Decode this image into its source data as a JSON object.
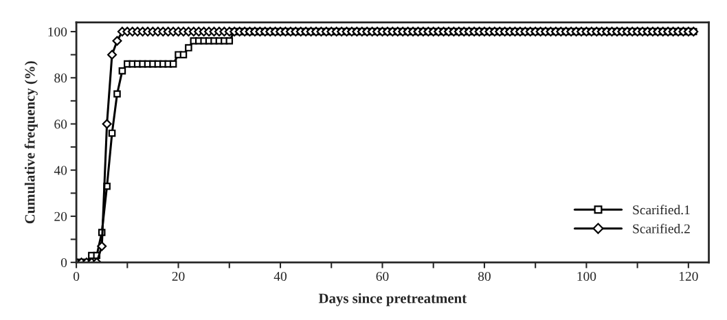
{
  "chart_data": {
    "type": "line",
    "xlabel": "Days since pretreatment",
    "ylabel": "Cumulative frequency (%)",
    "x": [
      0,
      1,
      2,
      3,
      4,
      5,
      6,
      7,
      8,
      9,
      10,
      11,
      12,
      13,
      14,
      15,
      16,
      17,
      18,
      19,
      20,
      21,
      22,
      23,
      24,
      25,
      26,
      27,
      28,
      29,
      30,
      31,
      32,
      33,
      34,
      35,
      36,
      37,
      38,
      39,
      40,
      41,
      42,
      43,
      44,
      45,
      46,
      47,
      48,
      49,
      50,
      51,
      52,
      53,
      54,
      55,
      56,
      57,
      58,
      59,
      60,
      61,
      62,
      63,
      64,
      65,
      66,
      67,
      68,
      69,
      70,
      71,
      72,
      73,
      74,
      75,
      76,
      77,
      78,
      79,
      80,
      81,
      82,
      83,
      84,
      85,
      86,
      87,
      88,
      89,
      90,
      91,
      92,
      93,
      94,
      95,
      96,
      97,
      98,
      99,
      100,
      101,
      102,
      103,
      104,
      105,
      106,
      107,
      108,
      109,
      110,
      111,
      112,
      113,
      114,
      115,
      116,
      117,
      118,
      119,
      120,
      121
    ],
    "series": [
      {
        "name": "Scarified.1",
        "color": "#000000",
        "marker": "square",
        "values": [
          0,
          0,
          0,
          3,
          3,
          13,
          33,
          56,
          73,
          83,
          86,
          86,
          86,
          86,
          86,
          86,
          86,
          86,
          86,
          86,
          90,
          90,
          93,
          96,
          96,
          96,
          96,
          96,
          96,
          96,
          96,
          100,
          100,
          100,
          100,
          100,
          100,
          100,
          100,
          100,
          100,
          100,
          100,
          100,
          100,
          100,
          100,
          100,
          100,
          100,
          100,
          100,
          100,
          100,
          100,
          100,
          100,
          100,
          100,
          100,
          100,
          100,
          100,
          100,
          100,
          100,
          100,
          100,
          100,
          100,
          100,
          100,
          100,
          100,
          100,
          100,
          100,
          100,
          100,
          100,
          100,
          100,
          100,
          100,
          100,
          100,
          100,
          100,
          100,
          100,
          100,
          100,
          100,
          100,
          100,
          100,
          100,
          100,
          100,
          100,
          100,
          100,
          100,
          100,
          100,
          100,
          100,
          100,
          100,
          100,
          100,
          100,
          100,
          100,
          100,
          100,
          100,
          100,
          100,
          100,
          100,
          100
        ]
      },
      {
        "name": "Scarified.2",
        "color": "#000000",
        "marker": "diamond",
        "values": [
          0,
          0,
          0,
          0,
          0,
          7,
          60,
          90,
          96,
          100,
          100,
          100,
          100,
          100,
          100,
          100,
          100,
          100,
          100,
          100,
          100,
          100,
          100,
          100,
          100,
          100,
          100,
          100,
          100,
          100,
          100,
          100,
          100,
          100,
          100,
          100,
          100,
          100,
          100,
          100,
          100,
          100,
          100,
          100,
          100,
          100,
          100,
          100,
          100,
          100,
          100,
          100,
          100,
          100,
          100,
          100,
          100,
          100,
          100,
          100,
          100,
          100,
          100,
          100,
          100,
          100,
          100,
          100,
          100,
          100,
          100,
          100,
          100,
          100,
          100,
          100,
          100,
          100,
          100,
          100,
          100,
          100,
          100,
          100,
          100,
          100,
          100,
          100,
          100,
          100,
          100,
          100,
          100,
          100,
          100,
          100,
          100,
          100,
          100,
          100,
          100,
          100,
          100,
          100,
          100,
          100,
          100,
          100,
          100,
          100,
          100,
          100,
          100,
          100,
          100,
          100,
          100,
          100,
          100,
          100,
          100,
          100
        ]
      }
    ],
    "xlim": [
      0,
      124
    ],
    "ylim": [
      0,
      104
    ],
    "xticks": [
      0,
      {
        "value": 10,
        "label": null
      },
      20,
      {
        "value": 30,
        "label": null
      },
      40,
      {
        "value": 50,
        "label": null
      },
      60,
      {
        "value": 70,
        "label": null
      },
      80,
      {
        "value": 90,
        "label": null
      },
      100,
      {
        "value": 110,
        "label": null
      },
      120
    ],
    "yticks": [
      0,
      {
        "value": 10,
        "label": null
      },
      20,
      {
        "value": 30,
        "label": null
      },
      40,
      {
        "value": 50,
        "label": null
      },
      60,
      {
        "value": 70,
        "label": null
      },
      80,
      {
        "value": 90,
        "label": null
      },
      100
    ],
    "legend": "bottom right",
    "grid": false,
    "line_style": "solid"
  }
}
